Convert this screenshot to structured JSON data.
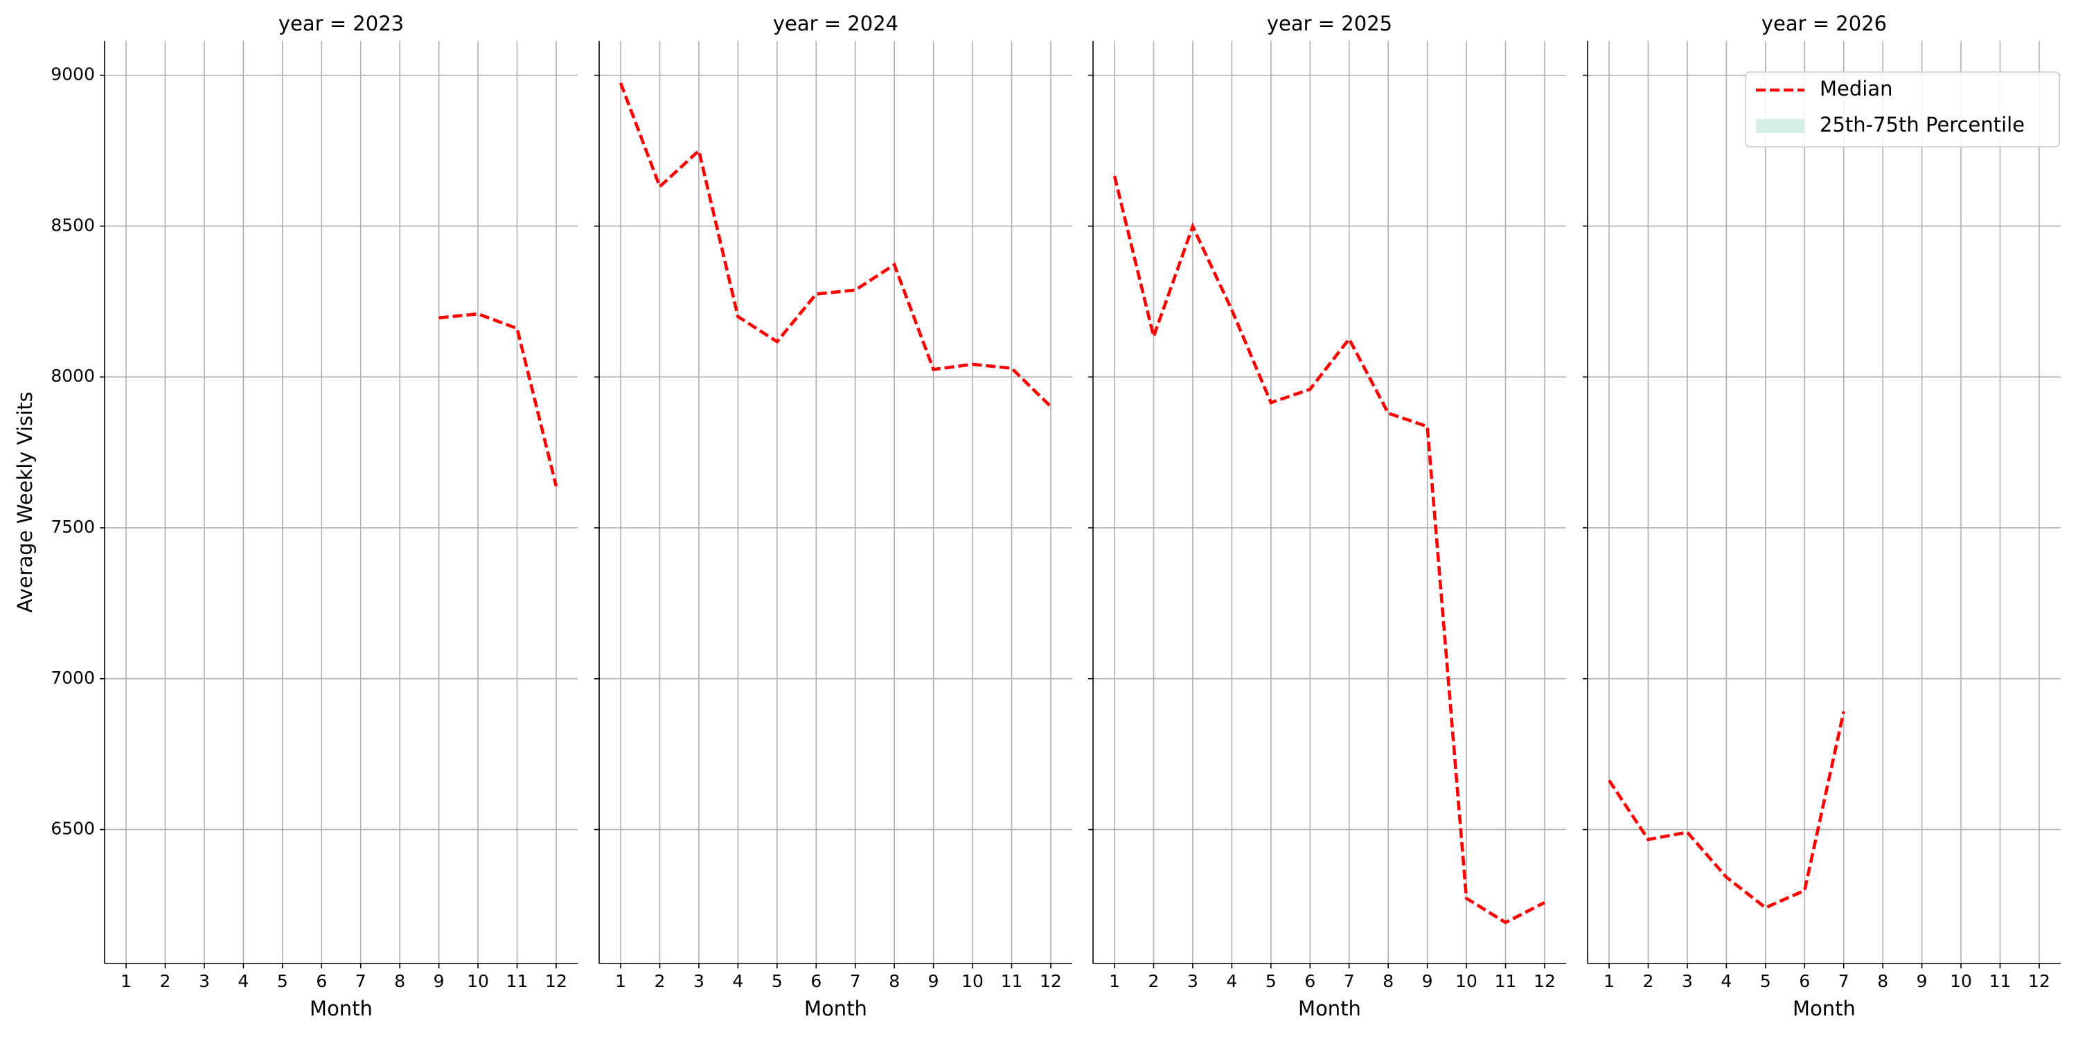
{
  "chart_data": [
    {
      "type": "line",
      "title": "year = 2023",
      "xlabel": "Month",
      "ylabel": "Average Weekly Visits",
      "x": [
        1,
        2,
        3,
        4,
        5,
        6,
        7,
        8,
        9,
        10,
        11,
        12
      ],
      "series": [
        {
          "color": "#ff0000",
          "values": [
            null,
            null,
            null,
            null,
            null,
            null,
            null,
            null,
            8196,
            8209,
            8161,
            7638
          ]
        }
      ],
      "xlim": [
        0.45,
        12.55
      ],
      "ylim": [
        6056,
        9114
      ],
      "xticks": [
        1,
        2,
        3,
        4,
        5,
        6,
        7,
        8,
        9,
        10,
        11,
        12
      ],
      "yticks": [
        6500,
        7000,
        7500,
        8000,
        8500,
        9000
      ],
      "grid": true
    },
    {
      "type": "line",
      "title": "year = 2024",
      "xlabel": "Month",
      "x": [
        1,
        2,
        3,
        4,
        5,
        6,
        7,
        8,
        9,
        10,
        11,
        12
      ],
      "series": [
        {
          "color": "#ff0000",
          "values": [
            8974,
            8631,
            8750,
            8200,
            8117,
            8275,
            8288,
            8372,
            8025,
            8042,
            8029,
            7902
          ]
        }
      ],
      "xlim": [
        0.45,
        12.55
      ],
      "ylim": [
        6056,
        9114
      ],
      "xticks": [
        1,
        2,
        3,
        4,
        5,
        6,
        7,
        8,
        9,
        10,
        11,
        12
      ],
      "yticks": [
        6500,
        7000,
        7500,
        8000,
        8500,
        9000
      ],
      "grid": true
    },
    {
      "type": "line",
      "title": "year = 2025",
      "xlabel": "Month",
      "x": [
        1,
        2,
        3,
        4,
        5,
        6,
        7,
        8,
        9,
        10,
        11,
        12
      ],
      "series": [
        {
          "color": "#ff0000",
          "values": [
            8666,
            8134,
            8499,
            8222,
            7915,
            7959,
            8126,
            7880,
            7836,
            6272,
            6192,
            6258
          ]
        }
      ],
      "xlim": [
        0.45,
        12.55
      ],
      "ylim": [
        6056,
        9114
      ],
      "xticks": [
        1,
        2,
        3,
        4,
        5,
        6,
        7,
        8,
        9,
        10,
        11,
        12
      ],
      "yticks": [
        6500,
        7000,
        7500,
        8000,
        8500,
        9000
      ],
      "grid": true
    },
    {
      "type": "line",
      "title": "year = 2026",
      "xlabel": "Month",
      "x": [
        1,
        2,
        3,
        4,
        5,
        6,
        7,
        8,
        9,
        10,
        11,
        12
      ],
      "series": [
        {
          "name": "Median",
          "color": "#ff0000",
          "values": [
            6663,
            6467,
            6491,
            6342,
            6241,
            6298,
            6891,
            null,
            null,
            null,
            null,
            null
          ]
        }
      ],
      "band": {
        "name": "25th-75th Percentile",
        "color": "#d6efe4"
      },
      "legend": "upper right",
      "xlim": [
        0.45,
        12.55
      ],
      "ylim": [
        6056,
        9114
      ],
      "xticks": [
        1,
        2,
        3,
        4,
        5,
        6,
        7,
        8,
        9,
        10,
        11,
        12
      ],
      "yticks": [
        6500,
        7000,
        7500,
        8000,
        8500,
        9000
      ],
      "grid": true
    }
  ]
}
